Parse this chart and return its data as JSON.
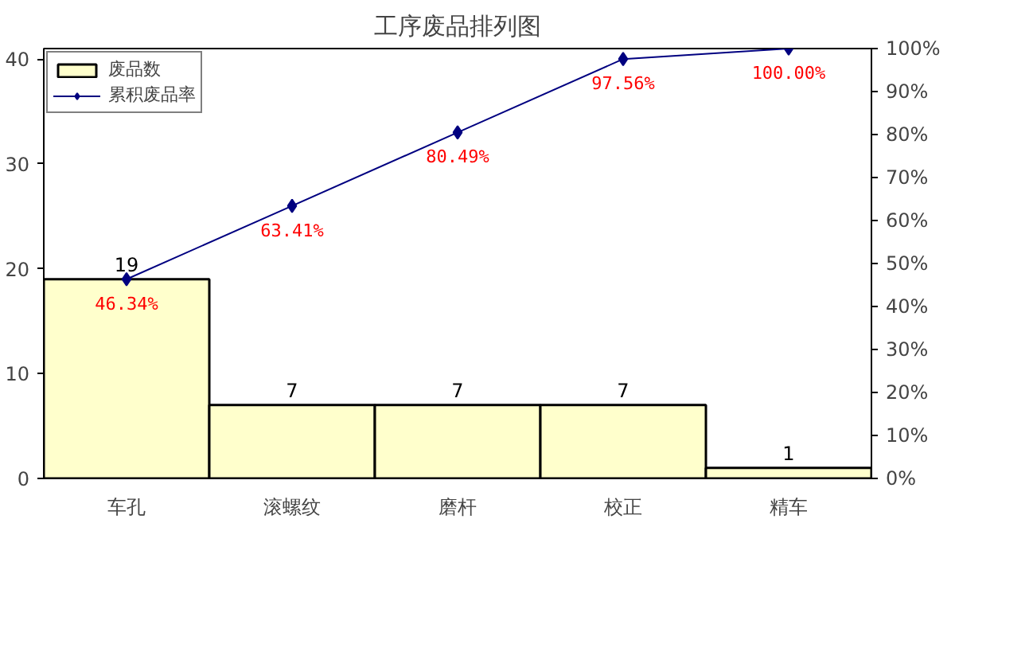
{
  "chart_data": {
    "type": "bar",
    "title": "工序废品排列图",
    "categories": [
      "车孔",
      "滚螺纹",
      "磨杆",
      "校正",
      "精车"
    ],
    "series": [
      {
        "name": "废品数",
        "color": "#ffffcc",
        "values": [
          19,
          7,
          7,
          7,
          1
        ],
        "value_labels": [
          "19",
          "7",
          "7",
          "7",
          "1"
        ]
      },
      {
        "name": "累积废品率",
        "type": "line",
        "axis": "y2",
        "color": "#000080",
        "values": [
          46.34,
          63.41,
          80.49,
          97.56,
          100
        ],
        "value_labels": [
          "46.34%",
          "63.41%",
          "80.49%",
          "97.56%",
          "100.00%"
        ]
      }
    ],
    "ylim": [
      0,
      41
    ],
    "yticks": [
      0,
      10,
      20,
      30,
      40
    ],
    "y2lim": [
      0,
      100
    ],
    "y2ticks": [
      {
        "value": 0,
        "label": "0%"
      },
      {
        "value": 10,
        "label": "10%"
      },
      {
        "value": 20,
        "label": "20%"
      },
      {
        "value": 30,
        "label": "30%"
      },
      {
        "value": 40,
        "label": "40%"
      },
      {
        "value": 50,
        "label": "50%"
      },
      {
        "value": 60,
        "label": "60%"
      },
      {
        "value": 70,
        "label": "70%"
      },
      {
        "value": 80,
        "label": "80%"
      },
      {
        "value": 90,
        "label": "90%"
      },
      {
        "value": 100,
        "label": "100%"
      }
    ],
    "marker": "diamond",
    "legend": "top left",
    "grid": false
  }
}
